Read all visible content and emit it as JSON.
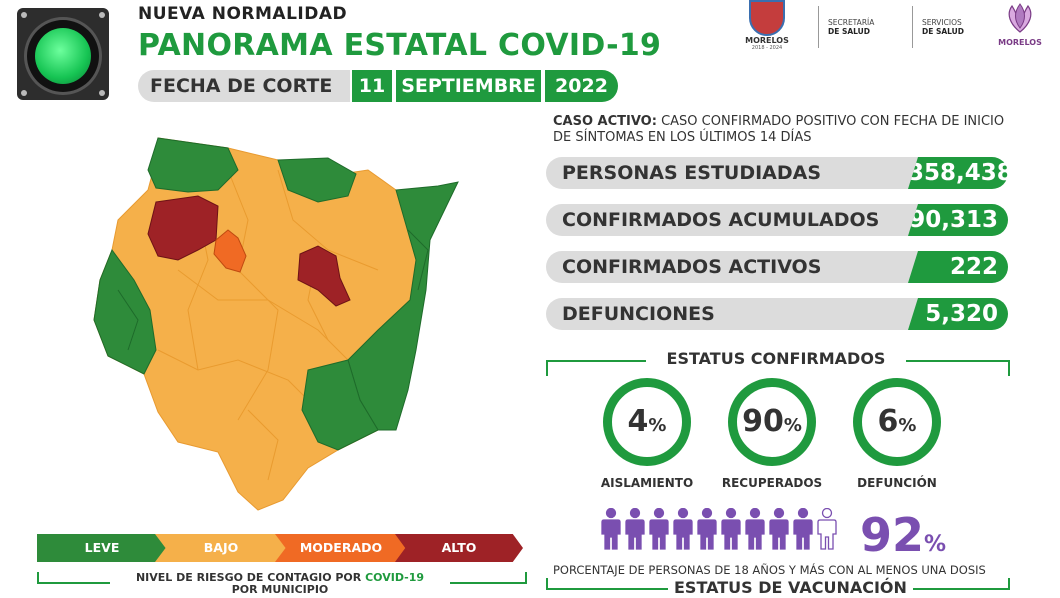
{
  "header": {
    "kicker": "NUEVA NORMALIDAD",
    "title": "PANORAMA ESTATAL COVID-19",
    "corte_label": "FECHA DE CORTE",
    "corte_day": "11",
    "corte_month": "SEPTIEMBRE",
    "corte_year": "2022"
  },
  "logos": {
    "state_name": "MORELOS",
    "state_period": "2018 - 2024",
    "inst1_line1": "SECRETARÍA",
    "inst1_line2": "DE SALUD",
    "inst2_line1": "SERVICIOS",
    "inst2_line2": "DE SALUD",
    "flower_name": "MORELOS"
  },
  "caso_activo": {
    "label": "CASO ACTIVO:",
    "text": " CASO CONFIRMADO POSITIVO CON FECHA DE INICIO DE SÍNTOMAS EN LOS ÚLTIMOS 14 DÍAS"
  },
  "stats": [
    {
      "label": "PERSONAS ESTUDIADAS",
      "value": "358,438"
    },
    {
      "label": "CONFIRMADOS ACUMULADOS",
      "value": "90,313"
    },
    {
      "label": "CONFIRMADOS ACTIVOS",
      "value": "222"
    },
    {
      "label": "DEFUNCIONES",
      "value": "5,320"
    }
  ],
  "estatus": {
    "title": "ESTATUS CONFIRMADOS",
    "items": [
      {
        "num": "4",
        "pct": "%",
        "label": "AISLAMIENTO"
      },
      {
        "num": "90",
        "pct": "%",
        "label": "RECUPERADOS"
      },
      {
        "num": "6",
        "pct": "%",
        "label": "DEFUNCIÓN"
      }
    ]
  },
  "vacunacion": {
    "percent_num": "92",
    "percent_sign": "%",
    "filled_people": 9,
    "total_people": 10,
    "note": "PORCENTAJE DE PERSONAS DE 18 AÑOS Y MÁS CON AL MENOS UNA DOSIS",
    "title": "ESTATUS DE VACUNACIÓN"
  },
  "legend": {
    "levels": [
      {
        "label": "LEVE",
        "color": "#2e8b3a"
      },
      {
        "label": "BAJO",
        "color": "#f5b04a"
      },
      {
        "label": "MODERADO",
        "color": "#f06a24"
      },
      {
        "label": "ALTO",
        "color": "#9e2226"
      }
    ],
    "note_prefix": "NIVEL DE RIESGO DE CONTAGIO POR ",
    "note_bold": "COVID-19",
    "note_suffix": "POR MUNICIPIO"
  },
  "colors": {
    "accent": "#1f9a3e",
    "vacc_purple": "#7a4fb0",
    "map_leve": "#2e8b3a",
    "map_bajo": "#f5b04a",
    "map_moderado": "#f06a24",
    "map_alto": "#9e2226"
  },
  "icons": {
    "semaforo": "traffic-light-icon",
    "person": "person-icon"
  }
}
